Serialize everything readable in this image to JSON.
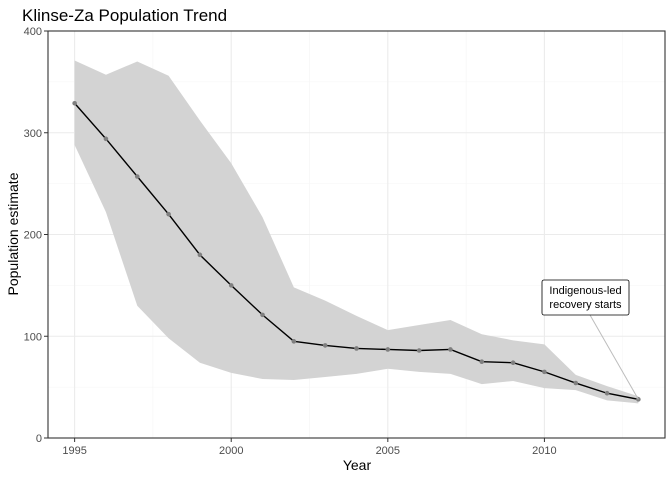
{
  "chart_data": {
    "type": "line",
    "title": "Klinse-Za Population Trend",
    "xlabel": "Year",
    "ylabel": "Population estimate",
    "xlim": [
      1994.15,
      2013.85
    ],
    "ylim": [
      0,
      400
    ],
    "x_ticks": [
      1995,
      2000,
      2005,
      2010
    ],
    "x_tick_labels": [
      "1995",
      "2000",
      "2005",
      "2010"
    ],
    "y_ticks": [
      0,
      100,
      200,
      300,
      400
    ],
    "y_tick_labels": [
      "0",
      "100",
      "200",
      "300",
      "400"
    ],
    "x_minor": [
      1997.5,
      2002.5,
      2007.5,
      2012.5
    ],
    "y_minor": [
      50,
      150,
      250,
      350
    ],
    "grid": true,
    "x": [
      1995,
      1996,
      1997,
      1998,
      1999,
      2000,
      2001,
      2002,
      2003,
      2004,
      2005,
      2006,
      2007,
      2008,
      2009,
      2010,
      2011,
      2012,
      2013
    ],
    "series": [
      {
        "values": [
          329,
          294,
          257,
          220,
          180,
          150,
          121,
          95,
          91,
          88,
          87,
          86,
          87,
          75,
          74,
          65,
          54,
          44,
          38
        ],
        "lower": [
          288,
          222,
          130,
          98,
          74,
          64,
          58,
          57,
          60,
          63,
          68,
          65,
          63,
          53,
          56,
          49,
          47,
          37,
          34
        ],
        "upper": [
          371,
          357,
          370,
          356,
          312,
          270,
          217,
          148,
          135,
          120,
          106,
          111,
          116,
          102,
          96,
          92,
          62,
          51,
          41
        ]
      }
    ],
    "annotations": [
      {
        "text_lines": [
          "Indigenous-led",
          "recovery starts"
        ],
        "points_to_x": 2013,
        "points_to_y": 38
      }
    ],
    "colors": {
      "line": "#000000",
      "point": "#7f7f7f",
      "ribbon": "#d3d3d3",
      "panel_border": "#333333",
      "grid_major": "#ebebeb",
      "grid_minor": "#f5f5f5"
    }
  }
}
